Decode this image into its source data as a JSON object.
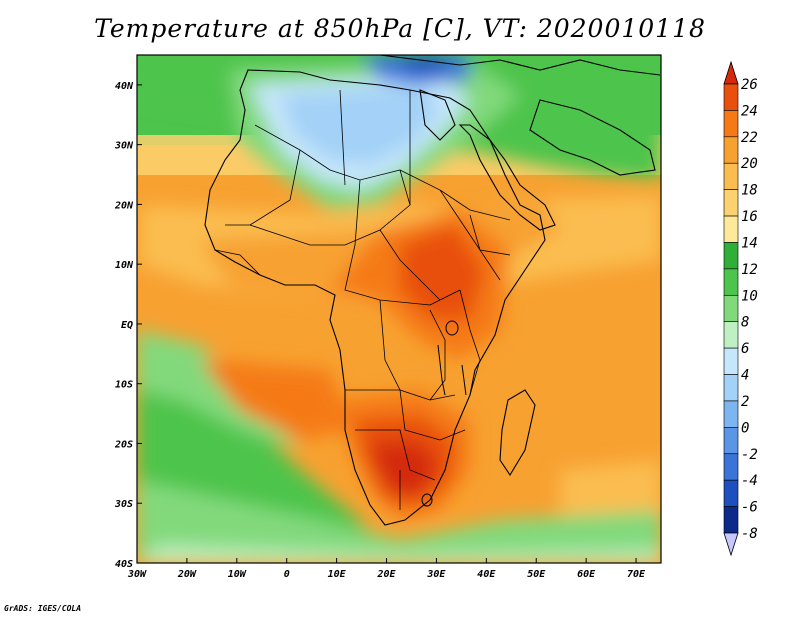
{
  "title": "Temperature at 850hPa [C], VT: 2020010118",
  "credit": "GrADS: IGES/COLA",
  "map": {
    "region": "Africa",
    "projection": "latlon",
    "lon_range": [
      -30,
      75
    ],
    "lat_range": [
      -40,
      45
    ],
    "lat_ticks": [
      {
        "value": 40,
        "label": "40N"
      },
      {
        "value": 30,
        "label": "30N"
      },
      {
        "value": 20,
        "label": "20N"
      },
      {
        "value": 10,
        "label": "10N"
      },
      {
        "value": 0,
        "label": "EQ"
      },
      {
        "value": -10,
        "label": "10S"
      },
      {
        "value": -20,
        "label": "20S"
      },
      {
        "value": -30,
        "label": "30S"
      },
      {
        "value": -40,
        "label": "40S"
      }
    ],
    "lon_ticks": [
      {
        "value": -30,
        "label": "30W"
      },
      {
        "value": -20,
        "label": "20W"
      },
      {
        "value": -10,
        "label": "10W"
      },
      {
        "value": 0,
        "label": "0"
      },
      {
        "value": 10,
        "label": "10E"
      },
      {
        "value": 20,
        "label": "20E"
      },
      {
        "value": 30,
        "label": "30E"
      },
      {
        "value": 40,
        "label": "40E"
      },
      {
        "value": 50,
        "label": "50E"
      },
      {
        "value": 60,
        "label": "60E"
      },
      {
        "value": 70,
        "label": "70E"
      }
    ]
  },
  "colorbar": {
    "labels": [
      "26",
      "24",
      "22",
      "20",
      "18",
      "16",
      "14",
      "12",
      "10",
      "8",
      "6",
      "4",
      "2",
      "0",
      "-2",
      "-4",
      "-6",
      "-8"
    ],
    "colors": [
      "#d42a0a",
      "#e8500c",
      "#f57a16",
      "#f7a131",
      "#fbbd4f",
      "#fcd270",
      "#fde999",
      "#2fae38",
      "#4dc44c",
      "#82d97c",
      "#bff0c3",
      "#c6e7fb",
      "#a3d1f7",
      "#7db5f0",
      "#5a95e6",
      "#3a74d9",
      "#1e4fbf",
      "#0b2a8c"
    ]
  }
}
